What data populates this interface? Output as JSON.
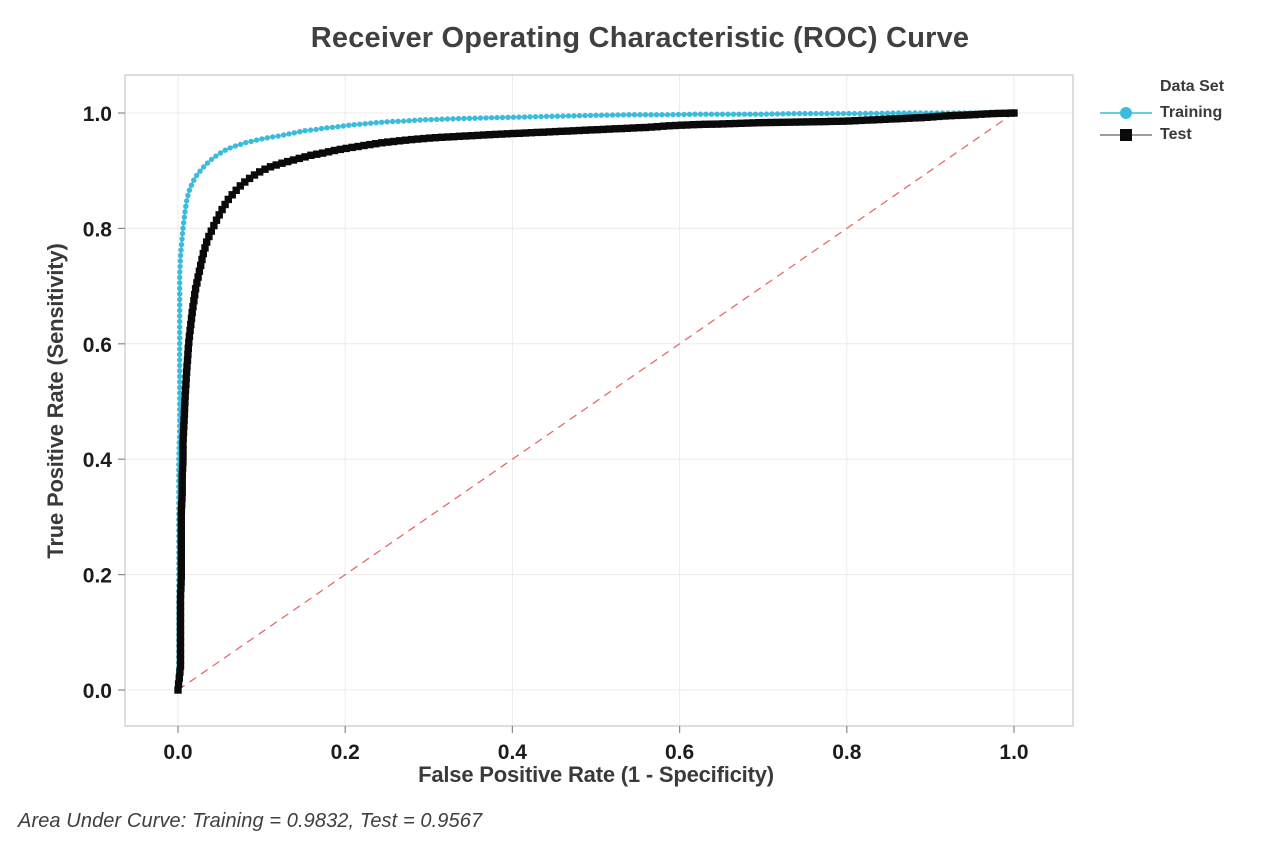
{
  "title": "Receiver Operating Characteristic (ROC) Curve",
  "footer": "Area Under Curve: Training = 0.9832, Test = 0.9567",
  "colors": {
    "training": "#3cbcdc",
    "test_marker": "#0a0a0a",
    "test_line": "#8f8f8f",
    "reference": "#e05c5c",
    "grid": "#ececec",
    "plot_border": "#c8c8c8",
    "tick": "#8a8a8a",
    "tick_label": "#1c1c1c",
    "title_text": "#404040"
  },
  "chart_data": {
    "type": "line",
    "title": "Receiver Operating Characteristic (ROC) Curve",
    "xlabel": "False Positive Rate (1 - Specificity)",
    "ylabel": "True Positive Rate (Sensitivity)",
    "xlim": [
      0,
      1
    ],
    "ylim": [
      0,
      1
    ],
    "grid": true,
    "annotation": "Area Under Curve: Training = 0.9832, Test = 0.9567",
    "xticks": [
      0.0,
      0.2,
      0.4,
      0.6,
      0.8,
      1.0
    ],
    "xtick_labels": [
      "0.0",
      "0.2",
      "0.4",
      "0.6",
      "0.8",
      "1.0"
    ],
    "yticks": [
      0.0,
      0.2,
      0.4,
      0.6,
      0.8,
      1.0
    ],
    "ytick_labels": [
      "0.0",
      "0.2",
      "0.4",
      "0.6",
      "0.8",
      "1.0"
    ],
    "legend": {
      "title": "Data Set",
      "position": "right"
    },
    "reference_line": {
      "name": "chance-diagonal",
      "from": [
        0,
        0
      ],
      "to": [
        1,
        1
      ],
      "style": "dashed",
      "color": "#e05c5c"
    },
    "series": [
      {
        "name": "Training",
        "auc": 0.9832,
        "marker": "circle",
        "color": "#3cbcdc",
        "line_color": "#3cbcdc",
        "points": [
          [
            0,
            0
          ],
          [
            0.001,
            0.05
          ],
          [
            0.001,
            0.1
          ],
          [
            0.001,
            0.15
          ],
          [
            0.001,
            0.2
          ],
          [
            0.001,
            0.25
          ],
          [
            0.001,
            0.3
          ],
          [
            0.001,
            0.35
          ],
          [
            0.001,
            0.4
          ],
          [
            0.002,
            0.45
          ],
          [
            0.002,
            0.5
          ],
          [
            0.002,
            0.55
          ],
          [
            0.002,
            0.6
          ],
          [
            0.002,
            0.64
          ],
          [
            0.002,
            0.68
          ],
          [
            0.002,
            0.72
          ],
          [
            0.003,
            0.75
          ],
          [
            0.004,
            0.77
          ],
          [
            0.005,
            0.785
          ],
          [
            0.006,
            0.8
          ],
          [
            0.008,
            0.825
          ],
          [
            0.01,
            0.845
          ],
          [
            0.012,
            0.858
          ],
          [
            0.014,
            0.868
          ],
          [
            0.017,
            0.878
          ],
          [
            0.02,
            0.887
          ],
          [
            0.024,
            0.895
          ],
          [
            0.028,
            0.902
          ],
          [
            0.033,
            0.91
          ],
          [
            0.038,
            0.917
          ],
          [
            0.044,
            0.924
          ],
          [
            0.05,
            0.93
          ],
          [
            0.057,
            0.936
          ],
          [
            0.065,
            0.941
          ],
          [
            0.073,
            0.945
          ],
          [
            0.082,
            0.949
          ],
          [
            0.091,
            0.952
          ],
          [
            0.1,
            0.955
          ],
          [
            0.11,
            0.958
          ],
          [
            0.12,
            0.96
          ],
          [
            0.13,
            0.963
          ],
          [
            0.14,
            0.966
          ],
          [
            0.15,
            0.969
          ],
          [
            0.163,
            0.971
          ],
          [
            0.176,
            0.974
          ],
          [
            0.19,
            0.976
          ],
          [
            0.205,
            0.979
          ],
          [
            0.22,
            0.981
          ],
          [
            0.236,
            0.983
          ],
          [
            0.253,
            0.985
          ],
          [
            0.27,
            0.986
          ],
          [
            0.29,
            0.988
          ],
          [
            0.31,
            0.989
          ],
          [
            0.33,
            0.99
          ],
          [
            0.355,
            0.991
          ],
          [
            0.38,
            0.992
          ],
          [
            0.41,
            0.993
          ],
          [
            0.44,
            0.994
          ],
          [
            0.47,
            0.995
          ],
          [
            0.5,
            0.996
          ],
          [
            0.54,
            0.997
          ],
          [
            0.58,
            0.997
          ],
          [
            0.62,
            0.998
          ],
          [
            0.66,
            0.998
          ],
          [
            0.7,
            0.998
          ],
          [
            0.74,
            0.999
          ],
          [
            0.78,
            0.999
          ],
          [
            0.82,
            0.999
          ],
          [
            0.86,
            1.0
          ],
          [
            0.9,
            1.0
          ],
          [
            1.0,
            1.0
          ]
        ]
      },
      {
        "name": "Test",
        "auc": 0.9567,
        "marker": "square",
        "color": "#0a0a0a",
        "line_color": "#8f8f8f",
        "points": [
          [
            0,
            0
          ],
          [
            0.003,
            0.04
          ],
          [
            0.003,
            0.08
          ],
          [
            0.003,
            0.12
          ],
          [
            0.003,
            0.16
          ],
          [
            0.004,
            0.2
          ],
          [
            0.004,
            0.24
          ],
          [
            0.004,
            0.28
          ],
          [
            0.004,
            0.31
          ],
          [
            0.005,
            0.34
          ],
          [
            0.005,
            0.37
          ],
          [
            0.006,
            0.4
          ],
          [
            0.006,
            0.43
          ],
          [
            0.007,
            0.46
          ],
          [
            0.008,
            0.49
          ],
          [
            0.009,
            0.52
          ],
          [
            0.01,
            0.545
          ],
          [
            0.011,
            0.565
          ],
          [
            0.012,
            0.585
          ],
          [
            0.013,
            0.605
          ],
          [
            0.015,
            0.63
          ],
          [
            0.017,
            0.655
          ],
          [
            0.019,
            0.675
          ],
          [
            0.021,
            0.695
          ],
          [
            0.024,
            0.715
          ],
          [
            0.027,
            0.735
          ],
          [
            0.03,
            0.755
          ],
          [
            0.034,
            0.775
          ],
          [
            0.038,
            0.79
          ],
          [
            0.043,
            0.805
          ],
          [
            0.048,
            0.82
          ],
          [
            0.054,
            0.836
          ],
          [
            0.06,
            0.85
          ],
          [
            0.067,
            0.862
          ],
          [
            0.074,
            0.873
          ],
          [
            0.082,
            0.883
          ],
          [
            0.091,
            0.892
          ],
          [
            0.1,
            0.9
          ],
          [
            0.111,
            0.907
          ],
          [
            0.122,
            0.912
          ],
          [
            0.134,
            0.917
          ],
          [
            0.147,
            0.922
          ],
          [
            0.16,
            0.927
          ],
          [
            0.175,
            0.931
          ],
          [
            0.19,
            0.936
          ],
          [
            0.207,
            0.94
          ],
          [
            0.224,
            0.944
          ],
          [
            0.242,
            0.948
          ],
          [
            0.26,
            0.951
          ],
          [
            0.28,
            0.954
          ],
          [
            0.305,
            0.957
          ],
          [
            0.33,
            0.959
          ],
          [
            0.355,
            0.961
          ],
          [
            0.38,
            0.963
          ],
          [
            0.41,
            0.965
          ],
          [
            0.44,
            0.967
          ],
          [
            0.47,
            0.969
          ],
          [
            0.5,
            0.971
          ],
          [
            0.53,
            0.973
          ],
          [
            0.56,
            0.975
          ],
          [
            0.59,
            0.978
          ],
          [
            0.62,
            0.98
          ],
          [
            0.65,
            0.981
          ],
          [
            0.69,
            0.983
          ],
          [
            0.73,
            0.984
          ],
          [
            0.77,
            0.985
          ],
          [
            0.8,
            0.986
          ],
          [
            0.83,
            0.988
          ],
          [
            0.86,
            0.99
          ],
          [
            0.89,
            0.992
          ],
          [
            0.92,
            0.995
          ],
          [
            0.95,
            0.997
          ],
          [
            0.975,
            0.999
          ],
          [
            1.0,
            1.0
          ]
        ]
      }
    ]
  }
}
